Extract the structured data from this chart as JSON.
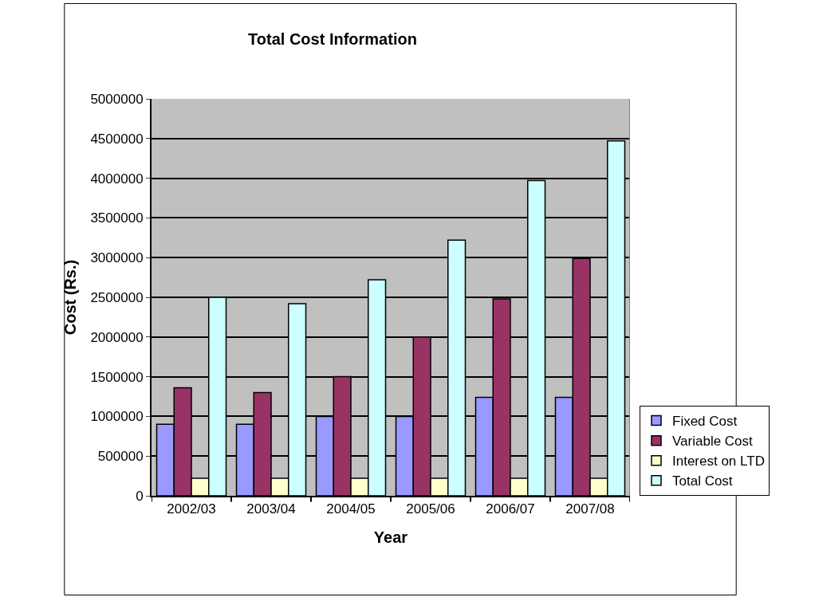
{
  "chart_data": {
    "type": "bar",
    "title": "Total Cost Information",
    "xlabel": "Year",
    "ylabel": "Cost (Rs.)",
    "categories": [
      "2002/03",
      "2003/04",
      "2004/05",
      "2005/06",
      "2006/07",
      "2007/08"
    ],
    "series": [
      {
        "name": "Fixed Cost",
        "color": "#9999ff",
        "values": [
          900000,
          900000,
          1000000,
          1000000,
          1240000,
          1240000
        ]
      },
      {
        "name": "Variable Cost",
        "color": "#993366",
        "values": [
          1360000,
          1300000,
          1500000,
          2000000,
          2480000,
          2990000
        ]
      },
      {
        "name": "Interest on LTD",
        "color": "#ffffcc",
        "values": [
          220000,
          220000,
          220000,
          220000,
          220000,
          220000
        ]
      },
      {
        "name": "Total Cost",
        "color": "#ccffff",
        "values": [
          2500000,
          2420000,
          2720000,
          3220000,
          3970000,
          4470000
        ]
      }
    ],
    "ylim": [
      0,
      5000000
    ],
    "yticks": [
      0,
      500000,
      1000000,
      1500000,
      2000000,
      2500000,
      3000000,
      3500000,
      4000000,
      4500000,
      5000000
    ],
    "grid": "y",
    "legend": "bottom right"
  }
}
